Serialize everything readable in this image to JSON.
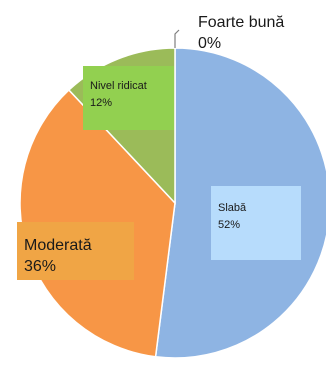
{
  "chart_data": {
    "type": "pie",
    "series": [
      {
        "values": [
          52,
          36,
          12,
          0
        ],
        "slices": [
          {
            "label": "Slabă",
            "value": 52,
            "pct": "52%",
            "color": "#8eb4e3"
          },
          {
            "label": "Moderată",
            "value": 36,
            "pct": "36%",
            "color": "#f79646"
          },
          {
            "label": "Nivel ridicat",
            "value": 12,
            "pct": "12%",
            "color": "#9bbb59"
          },
          {
            "label": "Foarte bună",
            "value": 0,
            "pct": "0%",
            "color": "#4f81bd"
          }
        ]
      }
    ],
    "label_box_colors": {
      "Slabă": "#b7dcfc",
      "Moderată": "#f0a545",
      "Nivel ridicat": "#92d050"
    },
    "leader_line_color": "#7f7f7f",
    "slice_border_color": "#ffffff"
  }
}
